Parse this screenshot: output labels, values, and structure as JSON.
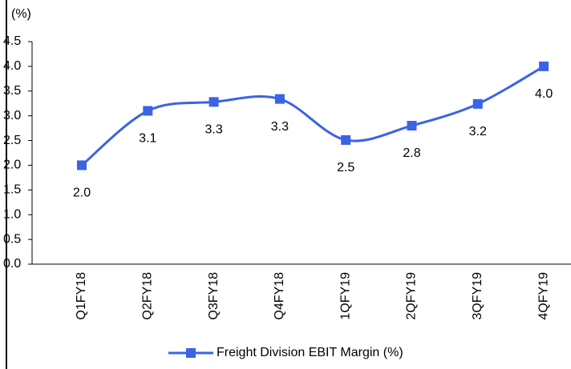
{
  "chart_data": {
    "type": "line",
    "y_label": "(%)",
    "categories": [
      "Q1FY18",
      "Q2FY18",
      "Q3FY18",
      "Q4FY18",
      "1QFY19",
      "2QFY19",
      "3QFY19",
      "4QFY19"
    ],
    "series": [
      {
        "name": "Freight Division EBIT Margin (%)",
        "color": "#3b63e6",
        "values": [
          2.0,
          3.1,
          3.28,
          3.34,
          2.51,
          2.8,
          3.24,
          4.0
        ],
        "value_labels": [
          "2.0",
          "3.1",
          "3.3",
          "3.3",
          "2.5",
          "2.8",
          "3.2",
          "4.0"
        ]
      }
    ],
    "ylim": [
      0,
      4.5
    ],
    "yticks": [
      {
        "value": 0,
        "label": "0.0"
      },
      0.5,
      {
        "value": 1,
        "label": "1.0"
      },
      1.5,
      {
        "value": 2,
        "label": "2.0"
      },
      2.5,
      {
        "value": 3,
        "label": "3.0"
      },
      3.5,
      {
        "value": 4,
        "label": "4.0"
      },
      4.5
    ],
    "legend": "bottom"
  }
}
